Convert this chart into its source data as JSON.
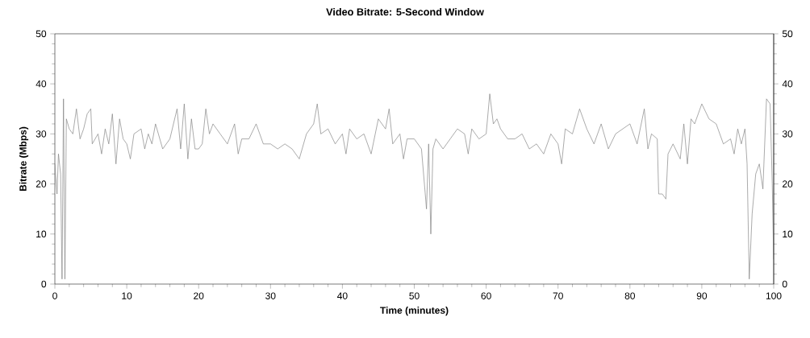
{
  "chart_data": {
    "type": "line",
    "title": "Video Bitrate: 5-Second Window",
    "xlabel": "Time (minutes)",
    "ylabel": "Bitrate (Mbps)",
    "xlim": [
      0,
      100
    ],
    "xticks": [
      0,
      10,
      20,
      30,
      40,
      50,
      60,
      70,
      80,
      90,
      100
    ],
    "ylim": [
      0,
      50
    ],
    "yticks": [
      0,
      10,
      20,
      30,
      40,
      50
    ],
    "y2lim": [
      0,
      50
    ],
    "y2ticks": [
      0,
      10,
      20,
      30,
      40,
      50
    ],
    "grid": false,
    "legend": false,
    "marker": "none",
    "line_style": "solid",
    "x": [
      0,
      0.3,
      0.5,
      0.8,
      1.0,
      1.2,
      1.4,
      1.6,
      2,
      2.5,
      3,
      3.5,
      4,
      4.5,
      5,
      5.2,
      6,
      6.5,
      7,
      7.5,
      8,
      8.5,
      9,
      9.5,
      10,
      10.5,
      11,
      12,
      12.5,
      13,
      13.5,
      14,
      15,
      16,
      17,
      17.5,
      18,
      18.5,
      19,
      19.5,
      20,
      20.5,
      21,
      21.5,
      22,
      23,
      24,
      25,
      25.5,
      26,
      27,
      28,
      29,
      30,
      31,
      32,
      33,
      34,
      35,
      36,
      36.5,
      37,
      38,
      39,
      40,
      40.5,
      41,
      42,
      43,
      44,
      45,
      46,
      46.5,
      47,
      48,
      48.5,
      49,
      50,
      51,
      51.7,
      52,
      52.3,
      52.6,
      53,
      54,
      55,
      56,
      57,
      57.5,
      58,
      59,
      60,
      60.5,
      61,
      61.5,
      62,
      63,
      64,
      65,
      66,
      67,
      68,
      69,
      70,
      70.5,
      71,
      72,
      73,
      74,
      75,
      76,
      77,
      78,
      79,
      80,
      81,
      82,
      82.5,
      83,
      83.8,
      84,
      84.5,
      85,
      85.3,
      86,
      87,
      87.5,
      88,
      88.5,
      89,
      90,
      91,
      92,
      93,
      94,
      94.5,
      95,
      95.5,
      96,
      96.3,
      96.6,
      97,
      97.5,
      98,
      98.5,
      99,
      99.5,
      99.8,
      100
    ],
    "series": [
      {
        "color": "#808080",
        "values": [
          24,
          18,
          26,
          22,
          1,
          37,
          1,
          33,
          31,
          30,
          35,
          29,
          31,
          34,
          35,
          28,
          30,
          26,
          31,
          28,
          34,
          24,
          33,
          29,
          28,
          25,
          30,
          31,
          27,
          30,
          28,
          32,
          27,
          29,
          35,
          27,
          36,
          25,
          33,
          27,
          27,
          28,
          35,
          30,
          32,
          30,
          28,
          32,
          26,
          29,
          29,
          32,
          28,
          28,
          27,
          28,
          27,
          25,
          30,
          32,
          36,
          30,
          31,
          28,
          30,
          26,
          31,
          29,
          30,
          26,
          33,
          31,
          35,
          28,
          30,
          25,
          29,
          29,
          27,
          15,
          28,
          10,
          27,
          29,
          27,
          29,
          31,
          30,
          26,
          31,
          29,
          30,
          38,
          32,
          33,
          31,
          29,
          29,
          30,
          27,
          28,
          26,
          30,
          28,
          24,
          31,
          30,
          35,
          31,
          28,
          32,
          27,
          30,
          31,
          32,
          28,
          35,
          27,
          30,
          29,
          18,
          18,
          17,
          26,
          28,
          25,
          32,
          24,
          33,
          32,
          36,
          33,
          32,
          28,
          29,
          26,
          31,
          28,
          31,
          24,
          1,
          14,
          22,
          24,
          19,
          37,
          36,
          20,
          5
        ]
      }
    ]
  }
}
